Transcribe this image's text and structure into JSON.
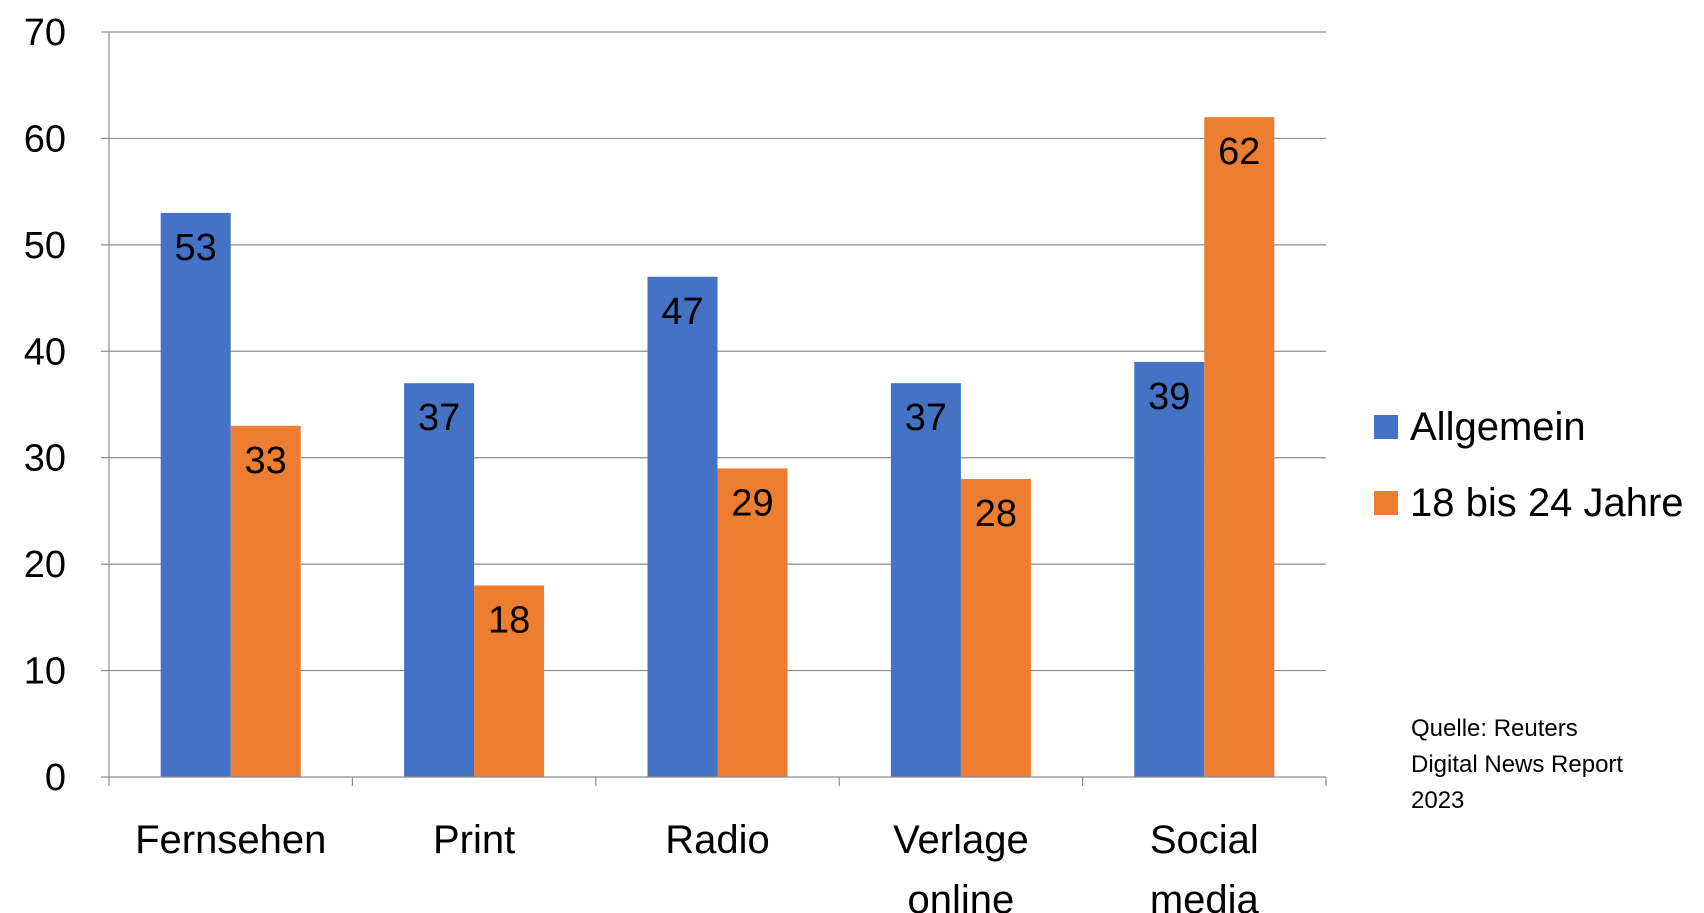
{
  "chart_data": {
    "type": "bar",
    "categories": [
      [
        "Fernsehen"
      ],
      [
        "Print"
      ],
      [
        "Radio"
      ],
      [
        "Verlage",
        "online"
      ],
      [
        "Social",
        "media"
      ]
    ],
    "series": [
      {
        "name": "Allgemein",
        "values": [
          53,
          37,
          47,
          37,
          39
        ],
        "color": "#4472C4"
      },
      {
        "name": "18 bis 24 Jahre",
        "values": [
          33,
          18,
          29,
          28,
          62
        ],
        "color": "#ED7D31"
      }
    ],
    "ylim": [
      0,
      70
    ],
    "yticks": [
      0,
      10,
      20,
      30,
      40,
      50,
      60,
      70
    ],
    "grid": true,
    "legend_position": "right",
    "axis_color": "#8C8C8C",
    "grid_color": "#8C8C8C"
  },
  "source_note": [
    "Quelle: Reuters",
    "Digital News Report",
    "2023"
  ]
}
